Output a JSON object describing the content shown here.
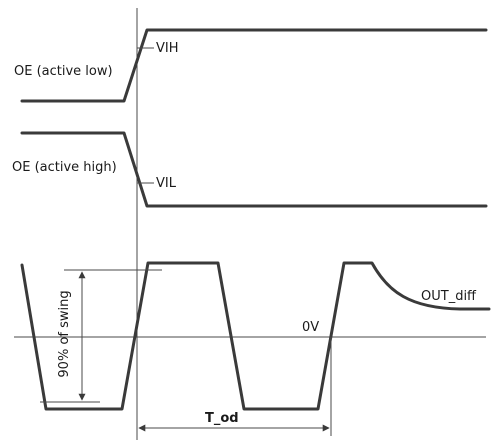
{
  "diagram": {
    "labels": {
      "oe_active_low": "OE (active low)",
      "oe_active_high": "OE (active high)",
      "vih": "VIH",
      "vil": "VIL",
      "out_diff": "OUT_diff",
      "zero_v": "0V",
      "swing": "90% of swing",
      "t_od": "T_od"
    },
    "colors": {
      "waveform": "#3a3a3a",
      "reference_line": "#4a4a4a",
      "background": "#ffffff"
    }
  }
}
